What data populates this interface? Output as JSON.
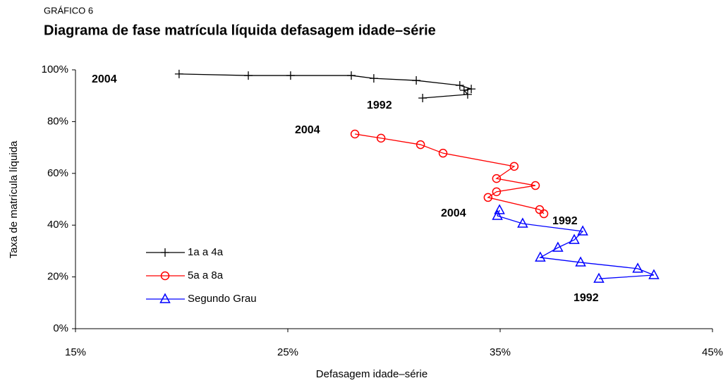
{
  "chart_data": {
    "type": "line",
    "label": "GRÁFICO 6",
    "title": "Diagrama de fase matrícula líquida defasagem idade–série",
    "xlabel": "Defasagem idade–série",
    "ylabel": "Taxa de matrícula líquida",
    "xlim": [
      15,
      45
    ],
    "xticks": [
      {
        "value": 15,
        "label": "15%"
      },
      {
        "value": 25,
        "label": "25%"
      },
      {
        "value": 35,
        "label": "35%"
      },
      {
        "value": 45,
        "label": "45%"
      }
    ],
    "ylim": [
      0,
      100
    ],
    "yticks": [
      {
        "value": 0,
        "label": "0%"
      },
      {
        "value": 20,
        "label": "20%"
      },
      {
        "value": 40,
        "label": "40%"
      },
      {
        "value": 60,
        "label": "60%"
      },
      {
        "value": 80,
        "label": "80%"
      },
      {
        "value": 100,
        "label": "100%"
      }
    ],
    "grid": false,
    "legend": "lower left",
    "series": [
      {
        "name": "1a a 4a",
        "color": "#000000",
        "marker": "plus",
        "x": [
          31.35,
          33.47,
          33.3,
          33.64,
          33.1,
          31.05,
          29.05,
          27.99,
          25.13,
          23.14,
          19.88
        ],
        "y": [
          89.1,
          90.5,
          92.1,
          92.6,
          94.0,
          95.9,
          96.7,
          97.8,
          97.8,
          97.8,
          98.4
        ]
      },
      {
        "name": "5a a 8a",
        "color": "#ff0000",
        "marker": "circle",
        "x": [
          37.06,
          36.86,
          34.43,
          34.83,
          36.66,
          34.83,
          35.66,
          32.31,
          31.25,
          29.39,
          28.16
        ],
        "y": [
          44.4,
          46.0,
          50.7,
          52.9,
          55.3,
          58.0,
          62.7,
          67.8,
          71.1,
          73.6,
          75.2
        ]
      },
      {
        "name": "Segundo Grau",
        "color": "#0000ff",
        "marker": "triangle",
        "x": [
          39.65,
          42.24,
          41.48,
          38.79,
          36.89,
          37.72,
          38.49,
          38.89,
          36.06,
          34.87,
          34.97
        ],
        "y": [
          19.3,
          20.7,
          23.2,
          25.6,
          27.5,
          31.3,
          34.3,
          37.6,
          40.6,
          43.6,
          45.8
        ]
      }
    ],
    "annotations": [
      {
        "text": "2004",
        "color": "#000000"
      },
      {
        "text": "1992",
        "color": "#000000"
      },
      {
        "text": "2004",
        "color": "#ff0000"
      },
      {
        "text": "1992",
        "color": "#ff0000"
      },
      {
        "text": "2004",
        "color": "#0000ff"
      },
      {
        "text": "1992",
        "color": "#0000ff"
      }
    ]
  }
}
